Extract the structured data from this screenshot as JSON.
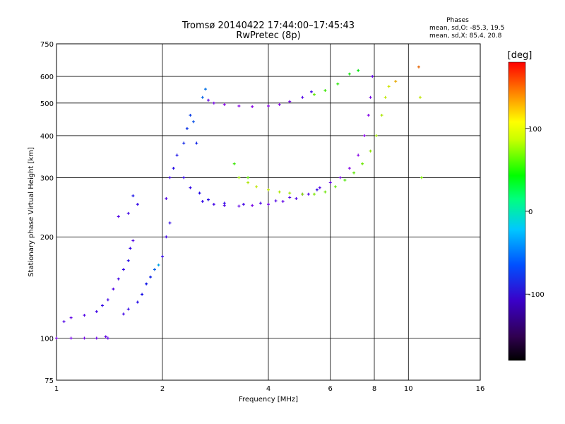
{
  "chart_data": {
    "type": "scatter",
    "title": "Tromsø 20140422 17:44:00–17:45:43",
    "subtitle": "RwPretec (8p)",
    "xlabel": "Frequency [MHz]",
    "ylabel": "Stationary phase Virtual Height [km]",
    "x_scale": "log",
    "y_scale": "log",
    "xlim": [
      1,
      16
    ],
    "ylim": [
      75,
      750
    ],
    "x_ticks": [
      1,
      2,
      4,
      6,
      8,
      10,
      16
    ],
    "x_tick_labels": [
      "1",
      "2",
      "4",
      "6",
      "8",
      "10",
      "16"
    ],
    "y_ticks": [
      75,
      100,
      200,
      300,
      400,
      500,
      600,
      750
    ],
    "y_tick_labels": [
      "75",
      "100",
      "200",
      "300",
      "400",
      "500",
      "600",
      "750"
    ],
    "grid": true,
    "phases_box": {
      "heading": "Phases",
      "line1": "mean, sd,O: -85.3, 19.5",
      "line2": "mean, sd,X: 85.4, 20.8"
    },
    "colorbar": {
      "label": "[deg]",
      "range": [
        -180,
        180
      ],
      "ticks": [
        100,
        0,
        -100
      ],
      "tick_labels": [
        "100",
        "0",
        "-100"
      ]
    },
    "series": [
      {
        "points": [
          [
            1.0,
            100,
            -120
          ],
          [
            1.1,
            100,
            -120
          ],
          [
            1.2,
            100,
            -120
          ],
          [
            1.3,
            100,
            -118
          ],
          [
            1.38,
            101,
            -115
          ],
          [
            1.4,
            100,
            -115
          ],
          [
            1.05,
            112,
            -110
          ],
          [
            1.1,
            115,
            -115
          ],
          [
            1.2,
            117,
            -110
          ],
          [
            1.3,
            120,
            -105
          ],
          [
            1.35,
            125,
            -100
          ],
          [
            1.4,
            130,
            -105
          ],
          [
            1.45,
            140,
            -110
          ],
          [
            1.5,
            150,
            -105
          ],
          [
            1.55,
            160,
            -100
          ],
          [
            1.6,
            170,
            -95
          ],
          [
            1.62,
            185,
            -100
          ],
          [
            1.65,
            195,
            -110
          ],
          [
            1.5,
            230,
            -110
          ],
          [
            1.6,
            235,
            -105
          ],
          [
            1.7,
            250,
            -100
          ],
          [
            1.65,
            265,
            -90
          ],
          [
            1.55,
            118,
            -105
          ],
          [
            1.6,
            122,
            -100
          ],
          [
            1.7,
            128,
            -95
          ],
          [
            1.75,
            135,
            -90
          ],
          [
            1.8,
            145,
            -85
          ],
          [
            1.85,
            152,
            -80
          ],
          [
            1.9,
            160,
            -60
          ],
          [
            1.95,
            165,
            -40
          ],
          [
            2.0,
            175,
            -100
          ],
          [
            2.05,
            200,
            -105
          ],
          [
            2.1,
            220,
            -100
          ],
          [
            2.05,
            260,
            -110
          ],
          [
            2.1,
            300,
            -105
          ],
          [
            2.15,
            320,
            -95
          ],
          [
            2.2,
            350,
            -90
          ],
          [
            2.3,
            380,
            -80
          ],
          [
            2.35,
            420,
            -75
          ],
          [
            2.4,
            460,
            -70
          ],
          [
            2.45,
            440,
            -65
          ],
          [
            2.5,
            380,
            -80
          ],
          [
            2.3,
            300,
            -100
          ],
          [
            2.4,
            280,
            -100
          ],
          [
            2.55,
            270,
            -95
          ],
          [
            2.6,
            520,
            -60
          ],
          [
            2.65,
            550,
            -55
          ],
          [
            2.7,
            510,
            -115
          ],
          [
            2.8,
            500,
            -120
          ],
          [
            3.0,
            495,
            -130
          ],
          [
            3.3,
            490,
            -135
          ],
          [
            3.6,
            488,
            -135
          ],
          [
            4.0,
            490,
            -130
          ],
          [
            4.3,
            495,
            -125
          ],
          [
            4.6,
            505,
            -120
          ],
          [
            5.0,
            520,
            -110
          ],
          [
            5.3,
            540,
            -105
          ],
          [
            2.6,
            255,
            -100
          ],
          [
            2.8,
            250,
            -105
          ],
          [
            3.0,
            248,
            -110
          ],
          [
            3.3,
            247,
            -115
          ],
          [
            3.6,
            248,
            -120
          ],
          [
            4.0,
            250,
            -120
          ],
          [
            4.4,
            255,
            -115
          ],
          [
            4.8,
            260,
            -110
          ],
          [
            5.2,
            268,
            -110
          ],
          [
            5.6,
            280,
            -110
          ],
          [
            6.0,
            290,
            -115
          ],
          [
            6.4,
            300,
            -120
          ],
          [
            6.8,
            320,
            -125
          ],
          [
            7.2,
            350,
            -130
          ],
          [
            7.5,
            400,
            -130
          ],
          [
            7.7,
            460,
            -125
          ],
          [
            7.8,
            520,
            -120
          ],
          [
            7.9,
            600,
            -115
          ],
          [
            2.7,
            258,
            -95
          ],
          [
            3.0,
            252,
            -100
          ],
          [
            3.4,
            250,
            -105
          ],
          [
            3.8,
            252,
            -108
          ],
          [
            4.2,
            256,
            -110
          ],
          [
            4.6,
            262,
            -110
          ],
          [
            5.0,
            268,
            -105
          ],
          [
            5.5,
            276,
            -100
          ]
        ]
      },
      {
        "points": [
          [
            3.3,
            300,
            90
          ],
          [
            3.5,
            290,
            95
          ],
          [
            3.7,
            282,
            100
          ],
          [
            4.0,
            276,
            100
          ],
          [
            4.3,
            272,
            95
          ],
          [
            4.6,
            270,
            90
          ],
          [
            5.0,
            268,
            85
          ],
          [
            5.4,
            268,
            80
          ],
          [
            5.8,
            272,
            75
          ],
          [
            6.2,
            282,
            70
          ],
          [
            6.6,
            295,
            65
          ],
          [
            7.0,
            310,
            70
          ],
          [
            7.4,
            330,
            75
          ],
          [
            7.8,
            360,
            85
          ],
          [
            8.1,
            400,
            90
          ],
          [
            8.4,
            460,
            95
          ],
          [
            8.6,
            520,
            100
          ],
          [
            8.8,
            560,
            105
          ],
          [
            5.4,
            530,
            70
          ],
          [
            5.8,
            545,
            60
          ],
          [
            6.3,
            570,
            55
          ],
          [
            6.8,
            610,
            45
          ],
          [
            7.2,
            625,
            40
          ],
          [
            3.2,
            330,
            60
          ],
          [
            3.5,
            300,
            70
          ],
          [
            9.2,
            580,
            130
          ],
          [
            10.7,
            640,
            150
          ],
          [
            10.8,
            520,
            100
          ],
          [
            10.9,
            300,
            80
          ]
        ]
      }
    ]
  }
}
